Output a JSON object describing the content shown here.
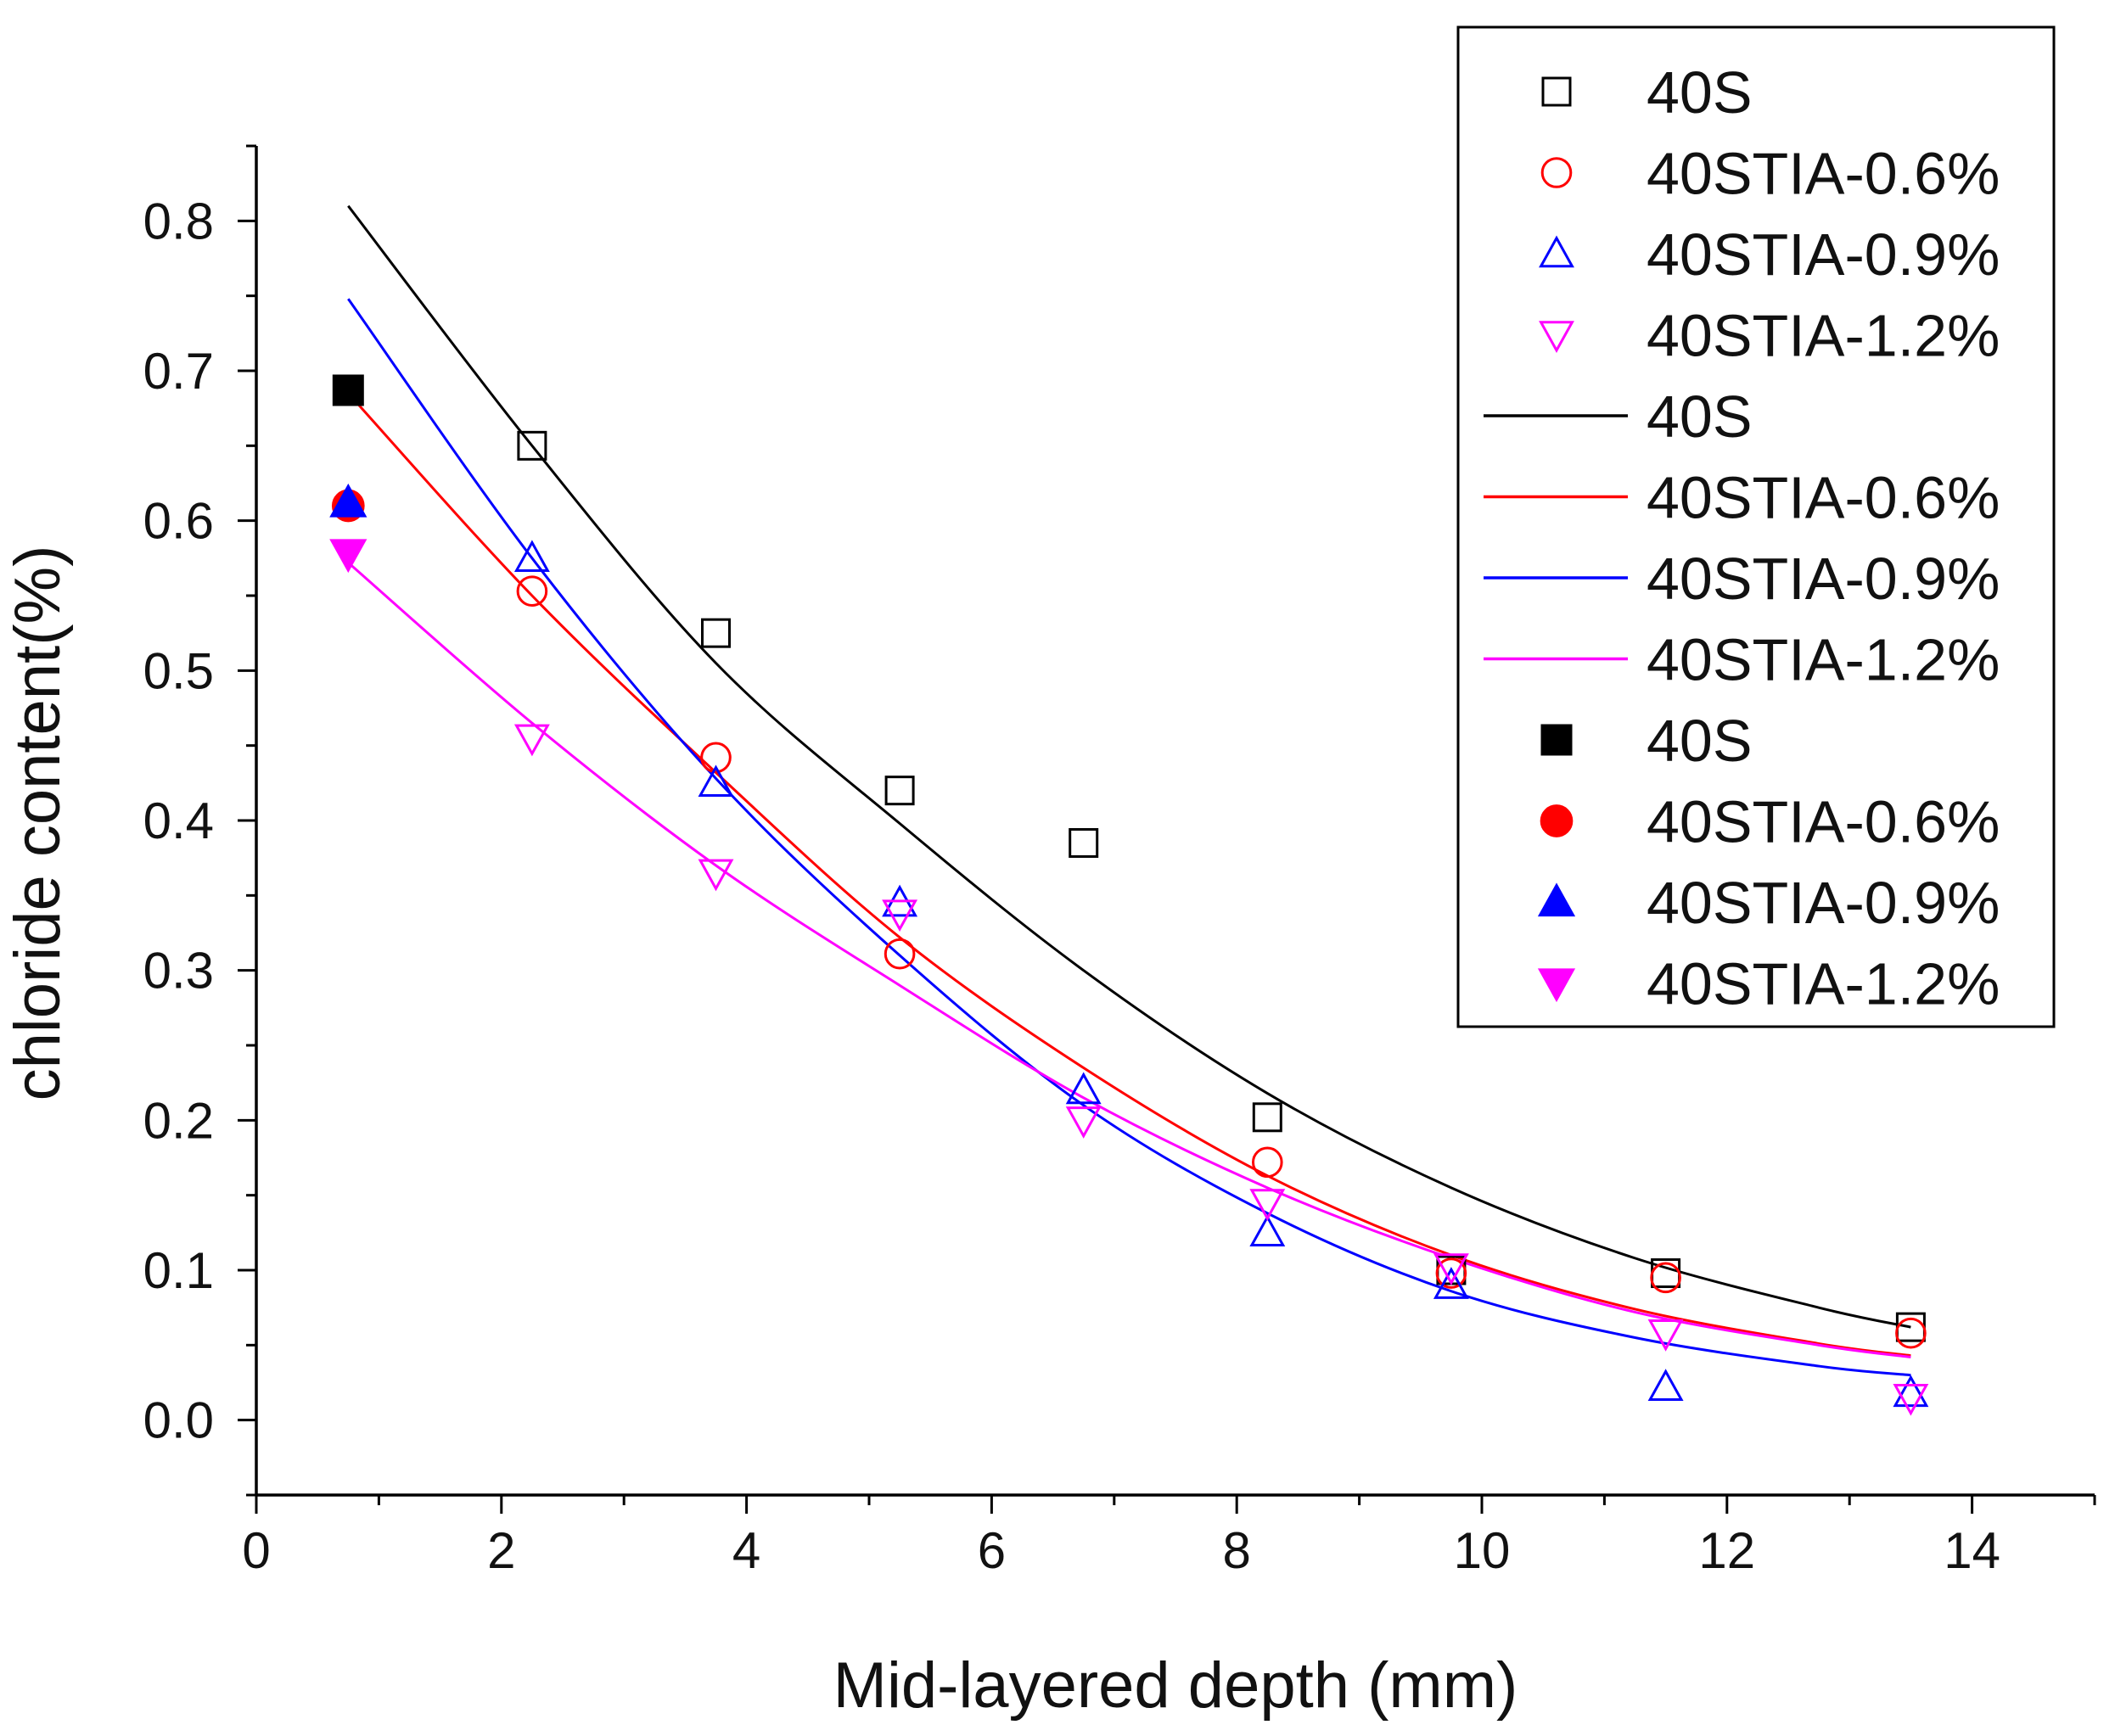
{
  "chart_data": {
    "type": "scatter",
    "title": "",
    "xlabel": "Mid-layered depth (mm)",
    "ylabel": "chloride content(%)",
    "xlim": [
      0,
      15
    ],
    "ylim": [
      -0.05,
      0.85
    ],
    "x_ticks": [
      "0",
      "2",
      "4",
      "6",
      "8",
      "10",
      "12",
      "14"
    ],
    "y_ticks": [
      "0.0",
      "0.1",
      "0.2",
      "0.3",
      "0.4",
      "0.5",
      "0.6",
      "0.7",
      "0.8"
    ],
    "legend_position": "top-right",
    "series": [
      {
        "name": "40S",
        "kind": "scatter-open",
        "marker": "square",
        "color": "#000000",
        "x": [
          2.25,
          3.75,
          5.25,
          6.75,
          8.25,
          9.75,
          11.5,
          13.5
        ],
        "y": [
          0.65,
          0.525,
          0.42,
          0.385,
          0.202,
          0.1,
          0.098,
          0.062
        ]
      },
      {
        "name": "40STIA-0.6%",
        "kind": "scatter-open",
        "marker": "circle",
        "color": "#ff0000",
        "x": [
          2.25,
          3.75,
          5.25,
          8.25,
          9.75,
          11.5,
          13.5
        ],
        "y": [
          0.553,
          0.442,
          0.311,
          0.172,
          0.098,
          0.095,
          0.058
        ]
      },
      {
        "name": "40STIA-0.9%",
        "kind": "scatter-open",
        "marker": "triangle-up",
        "color": "#0000ff",
        "x": [
          2.25,
          3.75,
          5.25,
          6.75,
          8.25,
          9.75,
          11.5,
          13.5
        ],
        "y": [
          0.575,
          0.425,
          0.345,
          0.22,
          0.125,
          0.09,
          0.022,
          0.018
        ]
      },
      {
        "name": "40STIA-1.2%",
        "kind": "scatter-open",
        "marker": "triangle-down",
        "color": "#ff00ff",
        "x": [
          2.25,
          3.75,
          5.25,
          6.75,
          8.25,
          9.75,
          11.5,
          13.5
        ],
        "y": [
          0.455,
          0.365,
          0.338,
          0.2,
          0.145,
          0.102,
          0.058,
          0.015
        ]
      },
      {
        "name": "40S",
        "kind": "line",
        "color": "#000000",
        "x": [
          0.75,
          2.25,
          3.75,
          5.25,
          6.75,
          8.25,
          9.75,
          11.25,
          12.75,
          13.5
        ],
        "y": [
          0.81,
          0.65,
          0.505,
          0.398,
          0.3,
          0.218,
          0.155,
          0.108,
          0.075,
          0.062
        ]
      },
      {
        "name": "40STIA-0.6%",
        "kind": "line",
        "color": "#ff0000",
        "x": [
          0.75,
          2.25,
          3.75,
          5.25,
          6.75,
          8.25,
          9.75,
          11.25,
          12.75,
          13.5
        ],
        "y": [
          0.685,
          0.55,
          0.432,
          0.322,
          0.235,
          0.163,
          0.11,
          0.074,
          0.051,
          0.043
        ]
      },
      {
        "name": "40STIA-0.9%",
        "kind": "line",
        "color": "#0000ff",
        "x": [
          0.75,
          2.25,
          3.75,
          5.25,
          6.75,
          8.25,
          9.75,
          11.25,
          12.75,
          13.5
        ],
        "y": [
          0.748,
          0.575,
          0.428,
          0.31,
          0.21,
          0.138,
          0.086,
          0.055,
          0.036,
          0.03
        ]
      },
      {
        "name": "40STIA-1.2%",
        "kind": "line",
        "color": "#ff00ff",
        "x": [
          0.75,
          2.25,
          3.75,
          5.25,
          6.75,
          8.25,
          9.75,
          11.25,
          12.75,
          13.5
        ],
        "y": [
          0.572,
          0.465,
          0.37,
          0.29,
          0.215,
          0.155,
          0.108,
          0.072,
          0.05,
          0.042
        ]
      },
      {
        "name": "40S",
        "kind": "scatter-filled",
        "marker": "square",
        "color": "#000000",
        "x": [
          0.75
        ],
        "y": [
          0.687
        ]
      },
      {
        "name": "40STIA-0.6%",
        "kind": "scatter-filled",
        "marker": "circle",
        "color": "#ff0000",
        "x": [
          0.75
        ],
        "y": [
          0.61
        ]
      },
      {
        "name": "40STIA-0.9%",
        "kind": "scatter-filled",
        "marker": "triangle-up",
        "color": "#0000ff",
        "x": [
          0.75
        ],
        "y": [
          0.612
        ]
      },
      {
        "name": "40STIA-1.2%",
        "kind": "scatter-filled",
        "marker": "triangle-down",
        "color": "#ff00ff",
        "x": [
          0.75
        ],
        "y": [
          0.578
        ]
      }
    ]
  }
}
